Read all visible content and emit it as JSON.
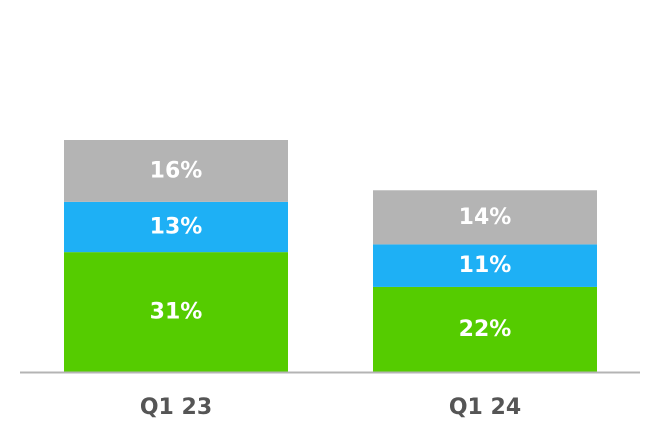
{
  "chart_data": {
    "type": "bar",
    "stacked": true,
    "categories": [
      "Q1 23",
      "Q1 24"
    ],
    "series": [
      {
        "values": [
          31,
          22
        ],
        "labels": [
          "31%",
          "22%"
        ],
        "color": "#55cc00"
      },
      {
        "values": [
          13,
          11
        ],
        "labels": [
          "13%",
          "11%"
        ],
        "color": "#1eb0f5"
      },
      {
        "values": [
          16,
          14
        ],
        "labels": [
          "16%",
          "14%"
        ],
        "color": "#b4b4b4"
      }
    ],
    "ylim": [
      0,
      60
    ],
    "grid": false,
    "legend": false,
    "title": "",
    "xlabel": "",
    "ylabel": "",
    "baseline_color": "#b4b4b4"
  }
}
